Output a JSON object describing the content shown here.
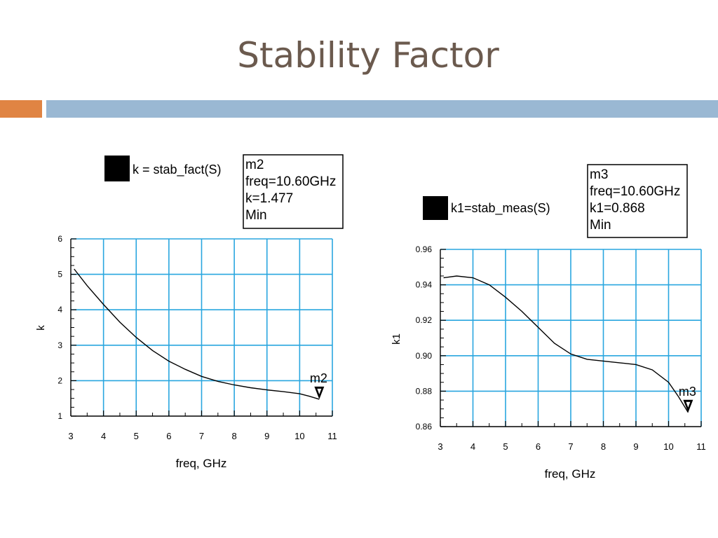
{
  "slide": {
    "title": "Stability Factor",
    "accent_colors": {
      "orange": "#e08443",
      "blue": "#9ab8d3"
    }
  },
  "chart_data": [
    {
      "type": "line",
      "xlabel": "freq, GHz",
      "ylabel": "k",
      "xlim": [
        3,
        11
      ],
      "ylim": [
        1,
        6
      ],
      "xticks": [
        3,
        4,
        5,
        6,
        7,
        8,
        9,
        10,
        11
      ],
      "yticks": [
        1,
        2,
        3,
        4,
        5,
        6
      ],
      "grid": true,
      "grid_color": "#29a6df",
      "legend": {
        "label": "k = stab_fact(S)",
        "placement": "top-left"
      },
      "marker": {
        "name": "m2",
        "lines": [
          "m2",
          "freq=10.60GHz",
          "k=1.477",
          "Min"
        ],
        "x": 10.6,
        "y": 1.477
      },
      "series": [
        {
          "name": "k = stab_fact(S)",
          "x": [
            3.1,
            3.5,
            4.0,
            4.5,
            5.0,
            5.5,
            6.0,
            6.5,
            7.0,
            7.5,
            8.0,
            8.5,
            9.0,
            9.5,
            10.0,
            10.3,
            10.6
          ],
          "y": [
            5.15,
            4.68,
            4.15,
            3.65,
            3.22,
            2.85,
            2.55,
            2.32,
            2.12,
            1.98,
            1.88,
            1.8,
            1.74,
            1.69,
            1.63,
            1.56,
            1.477
          ]
        }
      ]
    },
    {
      "type": "line",
      "xlabel": "freq, GHz",
      "ylabel": "k1",
      "xlim": [
        3,
        11
      ],
      "ylim": [
        0.86,
        0.96
      ],
      "xticks": [
        3,
        4,
        5,
        6,
        7,
        8,
        9,
        10,
        11
      ],
      "yticks": [
        0.86,
        0.88,
        0.9,
        0.92,
        0.94,
        0.96
      ],
      "ytick_labels": [
        "0.86",
        "0.88",
        "0.90",
        "0.92",
        "0.94",
        "0.96"
      ],
      "grid": true,
      "grid_color": "#29a6df",
      "legend": {
        "label": "k1=stab_meas(S)",
        "placement": "top-left"
      },
      "marker": {
        "name": "m3",
        "lines": [
          "m3",
          "freq=10.60GHz",
          "k1=0.868",
          "Min"
        ],
        "x": 10.6,
        "y": 0.868
      },
      "series": [
        {
          "name": "k1=stab_meas(S)",
          "x": [
            3.1,
            3.5,
            4.0,
            4.5,
            5.0,
            5.5,
            6.0,
            6.5,
            7.0,
            7.5,
            8.0,
            8.5,
            9.0,
            9.5,
            10.0,
            10.3,
            10.6
          ],
          "y": [
            0.944,
            0.945,
            0.944,
            0.94,
            0.933,
            0.925,
            0.916,
            0.907,
            0.901,
            0.898,
            0.897,
            0.896,
            0.895,
            0.892,
            0.885,
            0.877,
            0.868
          ]
        }
      ]
    }
  ]
}
